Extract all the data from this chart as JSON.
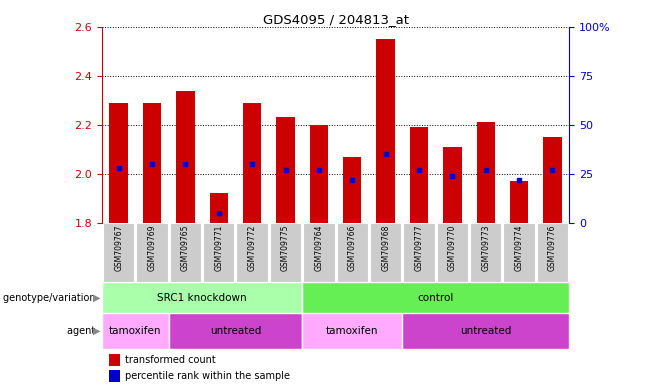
{
  "title": "GDS4095 / 204813_at",
  "samples": [
    "GSM709767",
    "GSM709769",
    "GSM709765",
    "GSM709771",
    "GSM709772",
    "GSM709775",
    "GSM709764",
    "GSM709766",
    "GSM709768",
    "GSM709777",
    "GSM709770",
    "GSM709773",
    "GSM709774",
    "GSM709776"
  ],
  "transformed_count": [
    2.29,
    2.29,
    2.34,
    1.92,
    2.29,
    2.23,
    2.2,
    2.07,
    2.55,
    2.19,
    2.11,
    2.21,
    1.97,
    2.15
  ],
  "percentile_rank": [
    28,
    30,
    30,
    5,
    30,
    27,
    27,
    22,
    35,
    27,
    24,
    27,
    22,
    27
  ],
  "ymin": 1.8,
  "ymax": 2.6,
  "yticks": [
    1.8,
    2.0,
    2.2,
    2.4,
    2.6
  ],
  "right_yticks": [
    0,
    25,
    50,
    75,
    100
  ],
  "bar_color": "#cc0000",
  "dot_color": "#0000cc",
  "tick_label_color": "#cc0000",
  "right_tick_color": "#0000cc",
  "genotype_groups": [
    {
      "label": "SRC1 knockdown",
      "start": 0,
      "end": 6,
      "color": "#99ee99"
    },
    {
      "label": "control",
      "start": 6,
      "end": 14,
      "color": "#55dd55"
    }
  ],
  "agent_groups": [
    {
      "label": "tamoxifen",
      "start": 0,
      "end": 2,
      "color": "#ffaaff"
    },
    {
      "label": "untreated",
      "start": 2,
      "end": 6,
      "color": "#dd44dd"
    },
    {
      "label": "tamoxifen",
      "start": 6,
      "end": 9,
      "color": "#ffaaff"
    },
    {
      "label": "untreated",
      "start": 9,
      "end": 14,
      "color": "#dd44dd"
    }
  ],
  "legend_items": [
    {
      "label": "transformed count",
      "color": "#cc0000"
    },
    {
      "label": "percentile rank within the sample",
      "color": "#0000cc"
    }
  ],
  "xticklabel_bg": "#cccccc",
  "bar_width": 0.55,
  "left_label_genotype": "genotype/variation",
  "left_label_agent": "agent"
}
